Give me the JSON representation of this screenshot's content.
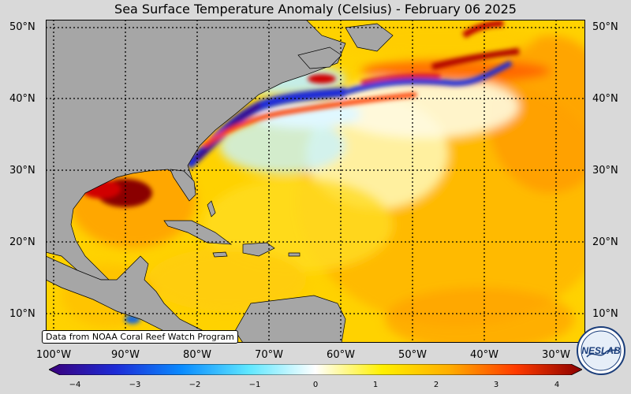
{
  "title": "Sea Surface Temperature Anomaly (Celsius) - February 06 2025",
  "lat_labels": [
    "50°N",
    "40°N",
    "30°N",
    "20°N",
    "10°N"
  ],
  "lat_labels_left": [
    "50°N",
    "40°N",
    "30°N",
    "20°N",
    "10°N"
  ],
  "lon_labels": [
    "100°W",
    "90°W",
    "80°W",
    "70°W",
    "60°W",
    "50°W",
    "40°W",
    "30°W"
  ],
  "source_note": "Data from NOAA Coral Reef Watch Program",
  "colorbar": {
    "ticks": [
      "−4",
      "−3",
      "−2",
      "−1",
      "0",
      "1",
      "2",
      "3",
      "4"
    ],
    "min": -4,
    "max": 4,
    "colors": [
      "#3a007a",
      "#1d2bd6",
      "#0a8cff",
      "#5fe7ff",
      "#ffffff",
      "#fff000",
      "#ffae00",
      "#ff3b00",
      "#8a0000"
    ]
  },
  "logo": {
    "text": "NESLAB",
    "name": "neslab-logo"
  },
  "colors": {
    "land": "#a6a6a6",
    "background": "#d9d9d9",
    "gridline": "#000000"
  }
}
